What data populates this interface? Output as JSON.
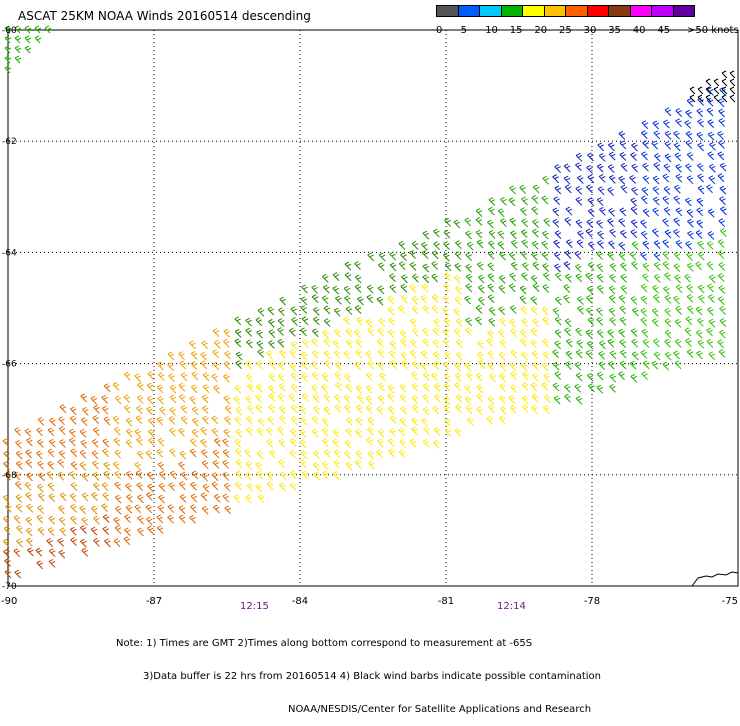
{
  "title": "ASCAT 25KM NOAA Winds 20160514 descending",
  "colorbar": {
    "colors": [
      "#555555",
      "#0060ff",
      "#00c8ff",
      "#00b400",
      "#ffff00",
      "#ffc000",
      "#ff6000",
      "#ff0000",
      "#8a3a10",
      "#ff00ff",
      "#c000ff",
      "#6000a0"
    ],
    "labels": [
      "0",
      "5",
      "10",
      "15",
      "20",
      "25",
      "30",
      "35",
      "40",
      "45",
      ">50 knots"
    ]
  },
  "axes": {
    "lon_ticks": [
      "-90",
      "-87",
      "-84",
      "-81",
      "-78",
      "-75"
    ],
    "lat_ticks": [
      "-60",
      "-62",
      "-64",
      "-66",
      "-68",
      "-70"
    ]
  },
  "times": [
    "12:15",
    "12:14"
  ],
  "notes": [
    "Note: 1) Times are GMT 2)Times along bottom correspond to measurement at -65S",
    "3)Data buffer is 22 hrs from 20160514 4) Black wind barbs indicate possible contamination",
    "NOAA/NESDIS/Center for Satellite Applications and Research"
  ],
  "chart_data": {
    "type": "scatter",
    "title": "ASCAT 25KM NOAA Winds 20160514 descending",
    "xlabel": "",
    "ylabel": "",
    "xlim": [
      -90,
      -75
    ],
    "ylim": [
      -70,
      -60
    ],
    "grid": true,
    "units": "knots",
    "swath": {
      "description": "wind barb field",
      "corners_lonlat": [
        [
          -90,
          -68.3
        ],
        [
          -75,
          -61
        ],
        [
          -75,
          -66.3
        ],
        [
          -90,
          -70
        ]
      ]
    },
    "wind_speed_regions": [
      {
        "region": "southwest",
        "speed_range_kt": [
          25,
          35
        ]
      },
      {
        "region": "central",
        "speed_range_kt": [
          20,
          25
        ]
      },
      {
        "region": "northeast-central",
        "speed_range_kt": [
          15,
          20
        ]
      },
      {
        "region": "northeast",
        "speed_range_kt": [
          10,
          15
        ]
      }
    ]
  }
}
